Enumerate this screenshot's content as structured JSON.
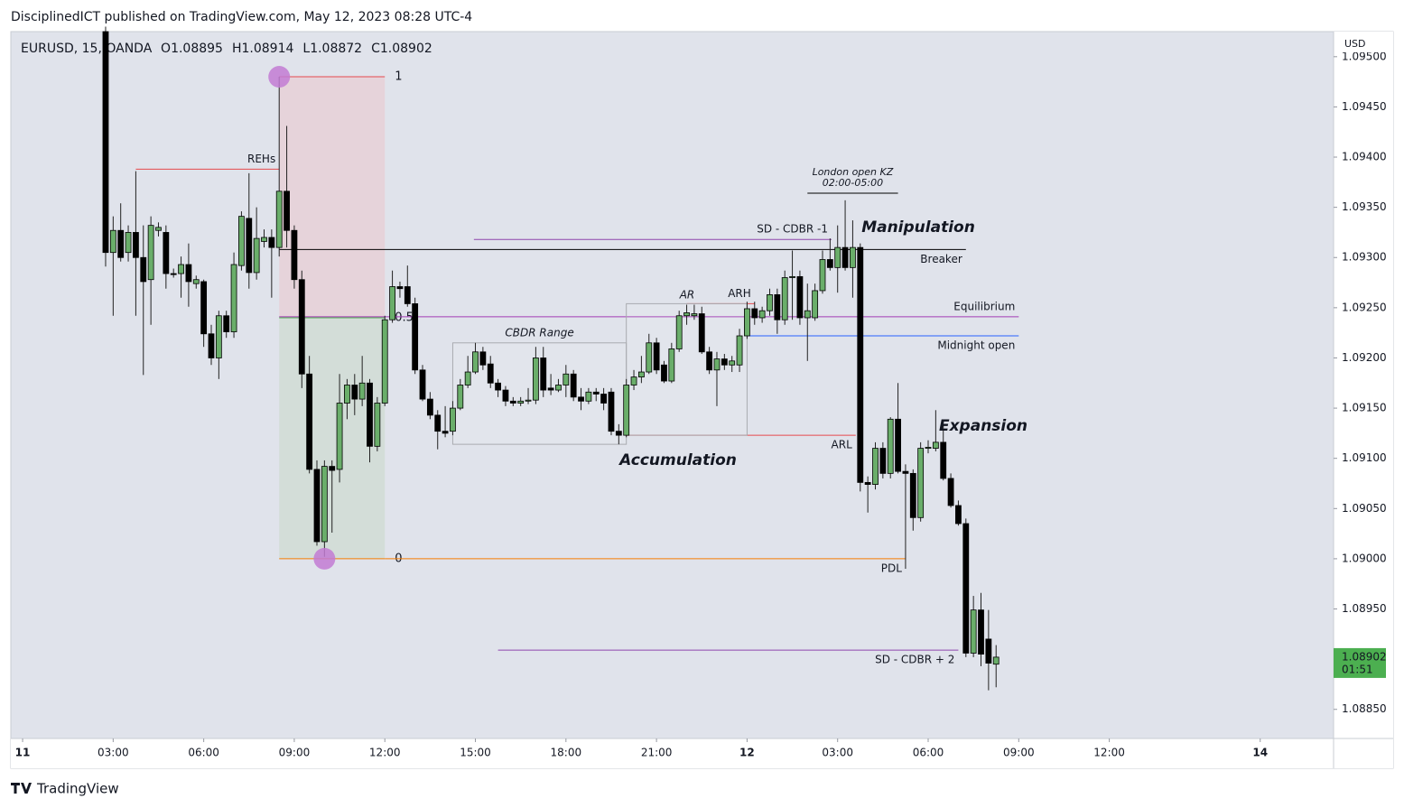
{
  "header": {
    "publisher": "DisciplinedICT published on TradingView.com, May 12, 2023 08:28 UTC-4",
    "brand": "TradingView"
  },
  "chart_data": {
    "type": "candlestick",
    "symbol": "EURUSD, 15, OANDA",
    "ohlc_labels": [
      "O1.08895",
      "H1.08914",
      "L1.08872",
      "C1.08902"
    ],
    "currency": "USD",
    "countdown": "01:51",
    "x": [
      2.75,
      3,
      3.25,
      3.5,
      3.75,
      4,
      4.25,
      4.5,
      4.75,
      5,
      5.25,
      5.5,
      5.75,
      6,
      6.25,
      6.5,
      6.75,
      7,
      7.25,
      7.5,
      7.75,
      8,
      8.25,
      8.5,
      8.75,
      9,
      9.25,
      9.5,
      9.75,
      10,
      10.25,
      10.5,
      10.75,
      11,
      11.25,
      11.5,
      11.75,
      12,
      12.25,
      12.5,
      12.75,
      13,
      13.25,
      13.5,
      13.75,
      14,
      14.25,
      14.5,
      14.75,
      15,
      15.25,
      15.5,
      15.75,
      16,
      16.25,
      16.5,
      16.75,
      17,
      17.25,
      17.5,
      17.75,
      18,
      18.25,
      18.5,
      18.75,
      19,
      19.25,
      19.5,
      19.75,
      20,
      20.25,
      20.5,
      20.75,
      21,
      21.25,
      21.5,
      21.75,
      22,
      22.25,
      22.5,
      22.75,
      23,
      23.25,
      23.5,
      23.75,
      24,
      24.25,
      24.5,
      24.75,
      25,
      25.25,
      25.5,
      25.75,
      26,
      26.25,
      26.5,
      26.75,
      27,
      27.25,
      27.5,
      27.75,
      28,
      28.25,
      28.5,
      28.75,
      29,
      29.25,
      29.5,
      29.75,
      30,
      30.25,
      30.5,
      30.75,
      31,
      31.25,
      31.5,
      31.75,
      32,
      32.25
    ],
    "open": [
      1.09525,
      1.09305,
      1.09327,
      1.09305,
      1.09325,
      1.093,
      1.09278,
      1.09327,
      1.09325,
      1.09284,
      1.09284,
      1.09293,
      1.09274,
      1.09276,
      1.09224,
      1.092,
      1.09242,
      1.09226,
      1.09292,
      1.09339,
      1.09285,
      1.09316,
      1.0932,
      1.0931,
      1.09366,
      1.09327,
      1.09278,
      1.09184,
      1.09089,
      1.09017,
      1.09092,
      1.09089,
      1.09155,
      1.09173,
      1.09159,
      1.09175,
      1.09112,
      1.09155,
      1.09238,
      1.09271,
      1.09271,
      1.09254,
      1.09188,
      1.09159,
      1.09143,
      1.09127,
      1.09127,
      1.0915,
      1.09173,
      1.09186,
      1.09206,
      1.09194,
      1.09175,
      1.09168,
      1.09157,
      1.09155,
      1.09157,
      1.09158,
      1.092,
      1.0917,
      1.09168,
      1.09173,
      1.09184,
      1.09161,
      1.09157,
      1.09166,
      1.09164,
      1.09166,
      1.09127,
      1.09123,
      1.09173,
      1.09181,
      1.09186,
      1.09215,
      1.09193,
      1.09177,
      1.09209,
      1.09242,
      1.09242,
      1.09244,
      1.09206,
      1.09188,
      1.09199,
      1.09193,
      1.09193,
      1.09222,
      1.09249,
      1.0924,
      1.09247,
      1.09263,
      1.09238,
      1.0928,
      1.09281,
      1.0924,
      1.0924,
      1.09267,
      1.09298,
      1.0929,
      1.0931,
      1.0929,
      1.0931,
      1.09076,
      1.09074,
      1.0911,
      1.09085,
      1.09139,
      1.09087,
      1.09085,
      1.09041,
      1.0911,
      1.0911,
      1.09116,
      1.0908,
      1.09053,
      1.09035,
      1.08906,
      1.08949,
      1.0892,
      1.08895
    ],
    "high": [
      1.0953,
      1.09341,
      1.09354,
      1.09332,
      1.09386,
      1.09332,
      1.09341,
      1.09335,
      1.09332,
      1.09289,
      1.09301,
      1.09314,
      1.09282,
      1.09278,
      1.09233,
      1.09247,
      1.09247,
      1.09305,
      1.09346,
      1.09384,
      1.0935,
      1.09328,
      1.09328,
      1.0948,
      1.09431,
      1.09332,
      1.09287,
      1.09202,
      1.09098,
      1.09098,
      1.09098,
      1.09184,
      1.09179,
      1.09184,
      1.09202,
      1.09179,
      1.09161,
      1.09242,
      1.09287,
      1.09276,
      1.09292,
      1.0926,
      1.09193,
      1.09166,
      1.09148,
      1.09152,
      1.09157,
      1.09179,
      1.09202,
      1.09215,
      1.09211,
      1.09202,
      1.09179,
      1.09172,
      1.09161,
      1.09161,
      1.0917,
      1.09211,
      1.09211,
      1.09184,
      1.09179,
      1.09193,
      1.09188,
      1.0917,
      1.0917,
      1.0917,
      1.0917,
      1.0917,
      1.09134,
      1.09179,
      1.09188,
      1.09202,
      1.09224,
      1.0922,
      1.09197,
      1.09215,
      1.09247,
      1.09253,
      1.09253,
      1.09251,
      1.09211,
      1.09206,
      1.09204,
      1.09202,
      1.09229,
      1.09256,
      1.09256,
      1.09251,
      1.09269,
      1.09269,
      1.09287,
      1.09307,
      1.09287,
      1.09274,
      1.09274,
      1.09307,
      1.09319,
      1.09332,
      1.09357,
      1.09337,
      1.09314,
      1.09082,
      1.09116,
      1.09116,
      1.09141,
      1.09175,
      1.09094,
      1.09089,
      1.09116,
      1.09118,
      1.09148,
      1.09134,
      1.09085,
      1.09058,
      1.0904,
      1.08963,
      1.08966,
      1.08949,
      1.08914
    ],
    "low": [
      1.09291,
      1.09242,
      1.09296,
      1.09296,
      1.09242,
      1.09183,
      1.09233,
      1.09321,
      1.09269,
      1.0928,
      1.0926,
      1.09251,
      1.09269,
      1.09211,
      1.09193,
      1.09179,
      1.0922,
      1.0922,
      1.09287,
      1.09269,
      1.09278,
      1.0931,
      1.0926,
      1.09301,
      1.0931,
      1.09269,
      1.0917,
      1.09085,
      1.09013,
      1.09002,
      1.09026,
      1.09076,
      1.09139,
      1.09143,
      1.09152,
      1.09096,
      1.09107,
      1.09152,
      1.09235,
      1.0926,
      1.09251,
      1.09184,
      1.09157,
      1.09139,
      1.09109,
      1.09121,
      1.09123,
      1.09148,
      1.0917,
      1.09184,
      1.09188,
      1.0917,
      1.09161,
      1.09152,
      1.09152,
      1.09152,
      1.09154,
      1.09154,
      1.09161,
      1.09163,
      1.09166,
      1.09161,
      1.09157,
      1.09148,
      1.09154,
      1.09157,
      1.09148,
      1.09123,
      1.09114,
      1.09121,
      1.09168,
      1.09175,
      1.09184,
      1.09184,
      1.09175,
      1.09175,
      1.09206,
      1.09233,
      1.09238,
      1.09204,
      1.09184,
      1.09152,
      1.09188,
      1.09186,
      1.09186,
      1.09219,
      1.09233,
      1.09235,
      1.09242,
      1.09224,
      1.09233,
      1.09238,
      1.09233,
      1.09197,
      1.09237,
      1.09264,
      1.09287,
      1.09265,
      1.09287,
      1.0926,
      1.09067,
      1.09046,
      1.09069,
      1.0908,
      1.0908,
      1.09085,
      1.0899,
      1.09028,
      1.09037,
      1.09105,
      1.09107,
      1.09078,
      1.09051,
      1.09033,
      1.08902,
      1.08902,
      1.08893,
      1.08869,
      1.08872
    ],
    "close": [
      1.09305,
      1.09327,
      1.093,
      1.09325,
      1.093,
      1.09276,
      1.09332,
      1.0933,
      1.09284,
      1.09283,
      1.09293,
      1.09276,
      1.09278,
      1.09224,
      1.092,
      1.09242,
      1.09226,
      1.09293,
      1.09341,
      1.09285,
      1.09319,
      1.0932,
      1.0931,
      1.09366,
      1.09327,
      1.09278,
      1.09184,
      1.09089,
      1.09017,
      1.09092,
      1.09088,
      1.09155,
      1.09173,
      1.09159,
      1.09175,
      1.09112,
      1.09155,
      1.09238,
      1.09271,
      1.09269,
      1.09254,
      1.09188,
      1.09159,
      1.09143,
      1.09127,
      1.09125,
      1.0915,
      1.09173,
      1.09186,
      1.09206,
      1.09193,
      1.09175,
      1.09168,
      1.09157,
      1.09155,
      1.09157,
      1.09158,
      1.092,
      1.09168,
      1.09168,
      1.09173,
      1.09184,
      1.09161,
      1.09157,
      1.09166,
      1.09164,
      1.09155,
      1.09127,
      1.09123,
      1.09173,
      1.09181,
      1.09186,
      1.09215,
      1.09188,
      1.09177,
      1.09209,
      1.09242,
      1.09245,
      1.09244,
      1.09206,
      1.09188,
      1.09199,
      1.09193,
      1.09197,
      1.09222,
      1.09249,
      1.0924,
      1.09247,
      1.09263,
      1.09238,
      1.0928,
      1.09281,
      1.0924,
      1.09247,
      1.09267,
      1.09298,
      1.0929,
      1.0931,
      1.0929,
      1.0931,
      1.09076,
      1.09074,
      1.0911,
      1.09085,
      1.09139,
      1.09087,
      1.09085,
      1.09041,
      1.0911,
      1.09111,
      1.09116,
      1.0908,
      1.09053,
      1.09035,
      1.08906,
      1.08949,
      1.08905,
      1.08896,
      1.08902
    ],
    "up_color": "#6aae6a",
    "down_color": "#000000",
    "price_label_color": "#4caf50",
    "xlim": [
      -0.39,
      43.43
    ],
    "xticks": [
      {
        "value": 0,
        "label": "11"
      },
      {
        "value": 3,
        "label": "03:00"
      },
      {
        "value": 6,
        "label": "06:00"
      },
      {
        "value": 9,
        "label": "09:00"
      },
      {
        "value": 12,
        "label": "12:00"
      },
      {
        "value": 15,
        "label": "15:00"
      },
      {
        "value": 18,
        "label": "18:00"
      },
      {
        "value": 21,
        "label": "21:00"
      },
      {
        "value": 24,
        "label": "12"
      },
      {
        "value": 27,
        "label": "03:00"
      },
      {
        "value": 30,
        "label": "06:00"
      },
      {
        "value": 33,
        "label": "09:00"
      },
      {
        "value": 36,
        "label": "12:00"
      },
      {
        "value": 41,
        "label": "14"
      }
    ],
    "ylim": [
      1.08821,
      1.09525
    ],
    "yticks": [
      {
        "value": 1.0885,
        "label": "1.08850"
      },
      {
        "value": 1.0895,
        "label": "1.08950"
      },
      {
        "value": 1.09,
        "label": "1.09000"
      },
      {
        "value": 1.0905,
        "label": "1.09050"
      },
      {
        "value": 1.091,
        "label": "1.09100"
      },
      {
        "value": 1.0915,
        "label": "1.09150"
      },
      {
        "value": 1.092,
        "label": "1.09200"
      },
      {
        "value": 1.0925,
        "label": "1.09250"
      },
      {
        "value": 1.093,
        "label": "1.09300"
      },
      {
        "value": 1.0935,
        "label": "1.09350"
      },
      {
        "value": 1.094,
        "label": "1.09400"
      },
      {
        "value": 1.0945,
        "label": "1.09450"
      },
      {
        "value": 1.095,
        "label": "1.09500"
      }
    ],
    "grid": false,
    "fib": {
      "x": [
        8.5,
        12
      ],
      "levels": [
        1,
        0.5,
        0
      ],
      "prices": [
        1.0948,
        1.0924,
        1.09
      ],
      "colors": [
        "#e5484d",
        "#4caf50",
        "#f57c00"
      ],
      "fills": [
        "#e6d3da",
        "#d3ddd8"
      ],
      "anchor_x": [
        8.5,
        10
      ],
      "anchor_prices": [
        1.0948,
        1.09
      ],
      "anchor_color": "#c27bd4"
    },
    "lines": [
      {
        "label": "REHs",
        "price": 1.09388,
        "x": [
          3.75,
          8.5
        ],
        "color": "#e5484d",
        "label_position": "above"
      },
      {
        "label": "SD - CDBR -1",
        "price": 1.09318,
        "x": [
          14.95,
          26.8
        ],
        "color": "#8e44ad",
        "label_position": "above"
      },
      {
        "label": "Breaker",
        "price": 1.09308,
        "x": [
          8.5,
          31.25
        ],
        "color": "#000000",
        "label_position": "below"
      },
      {
        "label": "Equilibrium",
        "price": 1.09241,
        "x": [
          8.5,
          33
        ],
        "color": "#a23bb5",
        "label_position": "above"
      },
      {
        "label": "Midnight open",
        "price": 1.09222,
        "x": [
          24,
          33
        ],
        "color": "#2962ff",
        "label_position": "below"
      },
      {
        "label": "ARH",
        "price": 1.09254,
        "x": [
          22,
          24.25
        ],
        "color": "#e5484d",
        "label_position": "above"
      },
      {
        "label": "ARL",
        "price": 1.09123,
        "x": [
          20,
          27.6
        ],
        "color": "#e5484d",
        "label_position": "below"
      },
      {
        "label": "PDL",
        "price": 1.09,
        "x": [
          12,
          29.25
        ],
        "color": "#f57c00",
        "label_position": "below"
      },
      {
        "label": "SD - CDBR + 2",
        "price": 1.08909,
        "x": [
          15.75,
          31
        ],
        "color": "#8e44ad",
        "label_position": "below"
      }
    ],
    "boxes": [
      {
        "label": "CBDR Range",
        "x": [
          14.25,
          20
        ],
        "prices": [
          1.09215,
          1.09114
        ]
      },
      {
        "x": [
          20,
          24
        ],
        "prices": [
          1.09254,
          1.09123
        ]
      }
    ],
    "session": {
      "label": "London open KZ",
      "hours": "02:00-05:00",
      "x": [
        26,
        29
      ]
    },
    "texts": [
      "AR",
      "Accumulation",
      "Manipulation",
      "Expansion"
    ]
  }
}
